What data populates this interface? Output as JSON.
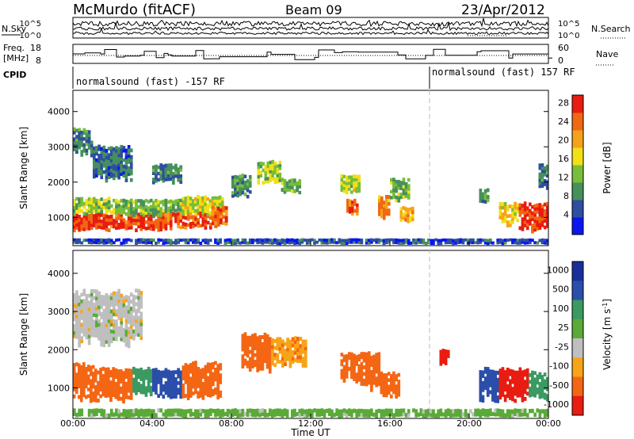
{
  "header": {
    "station": "McMurdo (fitACF)",
    "beam": "Beam 09",
    "date": "23/Apr/2012"
  },
  "status_panel": {
    "nsky_label": "N.Sky",
    "nsearch_label": "N.Search",
    "freq_label_line1": "Freq.",
    "freq_label_line2": "[MHz]",
    "nave_label": "Nave",
    "cpid_label": "CPID",
    "noise_axis_ticks": [
      "10^5",
      "10^0"
    ],
    "freq_axis_ticks": [
      "18",
      "8"
    ],
    "nave_axis_ticks": [
      "60",
      "0"
    ],
    "cpid_segments": [
      {
        "label": "normalsound (fast) -157 RF",
        "start_hour": 0
      },
      {
        "label": "normalsound (fast) 157 RF",
        "start_hour": 18
      }
    ]
  },
  "colors": {
    "power": [
      "#0a16f0",
      "#2e4ea0",
      "#46905c",
      "#78be38",
      "#f0e018",
      "#f5a21a",
      "#f06812",
      "#e81c10"
    ],
    "velocity": [
      "#e81c10",
      "#f46614",
      "#f8a418",
      "#bfbfbf",
      "#bfbfbf",
      "#5aaa38",
      "#3a9a62",
      "#2a4eaa",
      "#1a2e9a"
    ]
  },
  "chart_data": [
    {
      "type": "heatmap",
      "panel": "power",
      "xlabel": "",
      "ylabel": "Slant Range [km]",
      "x_range_hours": [
        0,
        24
      ],
      "ylim": [
        200,
        4600
      ],
      "y_ticks": [
        "1000",
        "2000",
        "3000",
        "4000"
      ],
      "colorbar": {
        "label": "Power [dB]",
        "ticks": [
          "4",
          "8",
          "12",
          "16",
          "20",
          "24",
          "28"
        ],
        "range": [
          0,
          30
        ]
      },
      "patches": [
        {
          "t": [
            0.0,
            1.0
          ],
          "r": [
            650,
            1100
          ],
          "v": 27
        },
        {
          "t": [
            0.0,
            2.0
          ],
          "r": [
            1100,
            1550
          ],
          "v": 14
        },
        {
          "t": [
            1.0,
            4.5
          ],
          "r": [
            650,
            1100
          ],
          "v": 26
        },
        {
          "t": [
            2.0,
            5.5
          ],
          "r": [
            1050,
            1500
          ],
          "v": 12
        },
        {
          "t": [
            4.5,
            7.0
          ],
          "r": [
            700,
            1150
          ],
          "v": 25
        },
        {
          "t": [
            5.5,
            7.6
          ],
          "r": [
            1100,
            1600
          ],
          "v": 16
        },
        {
          "t": [
            7.0,
            7.8
          ],
          "r": [
            750,
            1300
          ],
          "v": 24
        },
        {
          "t": [
            0.0,
            1.0
          ],
          "r": [
            2800,
            3500
          ],
          "v": 8
        },
        {
          "t": [
            1.0,
            3.0
          ],
          "r": [
            2100,
            3000
          ],
          "v": 7
        },
        {
          "t": [
            4.0,
            5.5
          ],
          "r": [
            2000,
            2500
          ],
          "v": 8
        },
        {
          "t": [
            8.0,
            9.0
          ],
          "r": [
            1600,
            2200
          ],
          "v": 10
        },
        {
          "t": [
            9.3,
            10.5
          ],
          "r": [
            2000,
            2600
          ],
          "v": 14
        },
        {
          "t": [
            10.5,
            11.5
          ],
          "r": [
            1700,
            2100
          ],
          "v": 12
        },
        {
          "t": [
            13.5,
            14.5
          ],
          "r": [
            1700,
            2200
          ],
          "v": 15
        },
        {
          "t": [
            13.8,
            14.4
          ],
          "r": [
            1100,
            1500
          ],
          "v": 24
        },
        {
          "t": [
            15.4,
            16.0
          ],
          "r": [
            1000,
            1600
          ],
          "v": 22
        },
        {
          "t": [
            16.5,
            17.2
          ],
          "r": [
            900,
            1300
          ],
          "v": 20
        },
        {
          "t": [
            16.0,
            17.0
          ],
          "r": [
            1500,
            2100
          ],
          "v": 12
        },
        {
          "t": [
            20.5,
            21.0
          ],
          "r": [
            1400,
            1800
          ],
          "v": 9
        },
        {
          "t": [
            21.5,
            22.5
          ],
          "r": [
            800,
            1400
          ],
          "v": 18
        },
        {
          "t": [
            22.5,
            24.0
          ],
          "r": [
            650,
            1400
          ],
          "v": 27
        },
        {
          "t": [
            23.5,
            24.0
          ],
          "r": [
            1800,
            2500
          ],
          "v": 8
        },
        {
          "t": [
            0.0,
            24.0
          ],
          "r": [
            250,
            400
          ],
          "v": 5
        }
      ]
    },
    {
      "type": "heatmap",
      "panel": "velocity",
      "xlabel": "Time UT",
      "ylabel": "Slant Range [km]",
      "x_range_hours": [
        0,
        24
      ],
      "ylim": [
        200,
        4600
      ],
      "y_ticks": [
        "1000",
        "2000",
        "3000",
        "4000"
      ],
      "x_ticks": [
        "00:00",
        "04:00",
        "08:00",
        "12:00",
        "16:00",
        "20:00",
        "00:00"
      ],
      "colorbar": {
        "label": "Velocity [m s^-1]",
        "ticks": [
          "1000",
          "500",
          "100",
          "25",
          "-25",
          "-100",
          "-500",
          "-1000"
        ]
      },
      "patches": [
        {
          "t": [
            0.0,
            1.2
          ],
          "r": [
            650,
            1600
          ],
          "v": -300
        },
        {
          "t": [
            1.2,
            3.0
          ],
          "r": [
            700,
            1500
          ],
          "v": -150
        },
        {
          "t": [
            3.0,
            4.0
          ],
          "r": [
            800,
            1500
          ],
          "v": 200
        },
        {
          "t": [
            4.0,
            5.5
          ],
          "r": [
            800,
            1500
          ],
          "v": 800
        },
        {
          "t": [
            5.5,
            7.5
          ],
          "r": [
            750,
            1650
          ],
          "v": -200
        },
        {
          "t": [
            0.0,
            3.5
          ],
          "r": [
            2200,
            3500
          ],
          "v": 0
        },
        {
          "t": [
            8.5,
            10.0
          ],
          "r": [
            1500,
            2400
          ],
          "v": -150
        },
        {
          "t": [
            10.0,
            11.8
          ],
          "r": [
            1600,
            2300
          ],
          "v": -80
        },
        {
          "t": [
            13.5,
            14.5
          ],
          "r": [
            1200,
            1900
          ],
          "v": -300
        },
        {
          "t": [
            14.5,
            15.5
          ],
          "r": [
            1000,
            1900
          ],
          "v": -200
        },
        {
          "t": [
            15.5,
            16.5
          ],
          "r": [
            800,
            1400
          ],
          "v": -200
        },
        {
          "t": [
            18.5,
            19.0
          ],
          "r": [
            1600,
            2000
          ],
          "v": -600
        },
        {
          "t": [
            20.5,
            21.5
          ],
          "r": [
            700,
            1500
          ],
          "v": 800
        },
        {
          "t": [
            21.5,
            23.0
          ],
          "r": [
            700,
            1500
          ],
          "v": -800
        },
        {
          "t": [
            23.0,
            24.0
          ],
          "r": [
            700,
            1400
          ],
          "v": 150
        },
        {
          "t": [
            0.0,
            24.0
          ],
          "r": [
            250,
            450
          ],
          "v": 50
        }
      ]
    }
  ]
}
